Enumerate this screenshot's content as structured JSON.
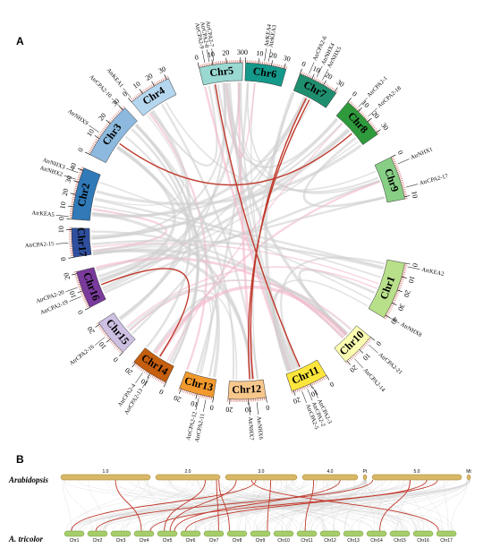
{
  "panels": {
    "a": "A",
    "b": "B"
  },
  "colors": {
    "synteny_gray": "#cfcfcf",
    "synteny_pink": "#f4b6c8",
    "highlight_red": "#c0392b",
    "bar_fill": "#d8b866",
    "bar_stroke": "#a07e2b",
    "bar_fill_green": "#a6cd6a",
    "bar_stroke_green": "#6e9a38"
  },
  "circos": {
    "chromosomes": [
      {
        "name": "Chr1",
        "color": "#b8e08a",
        "ticks": [
          "0",
          "10",
          "20",
          "30",
          "40"
        ]
      },
      {
        "name": "Chr10",
        "color": "#fafcb0",
        "ticks": [
          "0",
          "10",
          "20"
        ]
      },
      {
        "name": "Chr11",
        "color": "#fde63b",
        "ticks": [
          "0",
          "10",
          "20"
        ]
      },
      {
        "name": "Chr12",
        "color": "#f7c78c",
        "ticks": [
          "0",
          "10",
          "20"
        ]
      },
      {
        "name": "Chr13",
        "color": "#f29a2e",
        "ticks": [
          "0",
          "10",
          "20"
        ]
      },
      {
        "name": "Chr14",
        "color": "#c55e0e",
        "ticks": [
          "0",
          "10",
          "20"
        ]
      },
      {
        "name": "Chr15",
        "color": "#cdc0e2",
        "ticks": [
          "0",
          "10",
          "20"
        ]
      },
      {
        "name": "Chr16",
        "color": "#7a3a9c",
        "ticks": [
          "0",
          "10",
          "20"
        ]
      },
      {
        "name": "Chr17",
        "color": "#2f4f9e",
        "ticks": [
          "0",
          "10"
        ]
      },
      {
        "name": "Chr2",
        "color": "#3179b7",
        "ticks": [
          "0",
          "10",
          "20",
          "30",
          "40"
        ]
      },
      {
        "name": "Chr3",
        "color": "#8cb9dd",
        "ticks": [
          "0",
          "10",
          "20",
          "30"
        ]
      },
      {
        "name": "Chr4",
        "color": "#b4d6ee",
        "ticks": [
          "0",
          "10",
          "20",
          "30"
        ]
      },
      {
        "name": "Chr5",
        "color": "#9ad8d2",
        "ticks": [
          "0",
          "10",
          "20",
          "30"
        ]
      },
      {
        "name": "Chr6",
        "color": "#14998a",
        "ticks": [
          "0",
          "10",
          "20",
          "30"
        ]
      },
      {
        "name": "Chr7",
        "color": "#1f8e6e",
        "ticks": [
          "0",
          "10",
          "20",
          "30"
        ]
      },
      {
        "name": "Chr8",
        "color": "#2f9a3c",
        "ticks": [
          "0",
          "10",
          "20",
          "30"
        ]
      },
      {
        "name": "Chr9",
        "color": "#88cf86",
        "ticks": [
          "0",
          "10"
        ]
      }
    ],
    "genes": [
      {
        "label": "AtrKEA1",
        "chr": "Chr4",
        "at": 0.05
      },
      {
        "label": "AtrCPA2-9",
        "chr": "Chr5",
        "at": 0.15
      },
      {
        "label": "AtrCPA2-8",
        "chr": "Chr5",
        "at": 0.25
      },
      {
        "label": "AtrCPA2-7",
        "chr": "Chr5",
        "at": 0.35
      },
      {
        "label": "AtrKEA4",
        "chr": "Chr6",
        "at": 0.45
      },
      {
        "label": "AtrKEA3",
        "chr": "Chr6",
        "at": 0.55
      },
      {
        "label": "AtrCPA2-6",
        "chr": "Chr7",
        "at": 0.2
      },
      {
        "label": "AtrNHX4",
        "chr": "Chr7",
        "at": 0.4
      },
      {
        "label": "AtrNHX5",
        "chr": "Chr7",
        "at": 0.55
      },
      {
        "label": "AtrCPA2-1",
        "chr": "Chr8",
        "at": 0.25
      },
      {
        "label": "AtrCPA2-18",
        "chr": "Chr8",
        "at": 0.55
      },
      {
        "label": "AtrNHX1",
        "chr": "Chr9",
        "at": 0.2
      },
      {
        "label": "AtrCPA2-17",
        "chr": "Chr9",
        "at": 0.75
      },
      {
        "label": "AtrKEA2",
        "chr": "Chr1",
        "at": 0.05
      },
      {
        "label": "AtrNHX8",
        "chr": "Chr1",
        "at": 0.95
      },
      {
        "label": "AtrCPA2-21",
        "chr": "Chr10",
        "at": 0.2
      },
      {
        "label": "AtrCPA2-14",
        "chr": "Chr10",
        "at": 0.75
      },
      {
        "label": "AtrCPA2-3",
        "chr": "Chr11",
        "at": 0.45
      },
      {
        "label": "AtrCPA2-2",
        "chr": "Chr11",
        "at": 0.6
      },
      {
        "label": "AtrCPA2-5",
        "chr": "Chr11",
        "at": 0.75
      },
      {
        "label": "AtrNHX6",
        "chr": "Chr12",
        "at": 0.25
      },
      {
        "label": "AtrNHX7",
        "chr": "Chr12",
        "at": 0.45
      },
      {
        "label": "AtrCPA2-11",
        "chr": "Chr13",
        "at": 0.2
      },
      {
        "label": "AtrCPA2-12",
        "chr": "Chr13",
        "at": 0.4
      },
      {
        "label": "AtrCPA2-13",
        "chr": "Chr14",
        "at": 0.45
      },
      {
        "label": "AtrCPA2-4",
        "chr": "Chr14",
        "at": 0.65
      },
      {
        "label": "AtrCPA2-16",
        "chr": "Chr15",
        "at": 0.6
      },
      {
        "label": "AtrCPA2-19",
        "chr": "Chr16",
        "at": 0.35
      },
      {
        "label": "AtrCPA2-20",
        "chr": "Chr16",
        "at": 0.6
      },
      {
        "label": "AtrCPA2-15",
        "chr": "Chr17",
        "at": 0.5
      },
      {
        "label": "AtrKEA5",
        "chr": "Chr2",
        "at": 0.05
      },
      {
        "label": "AtrNHX2",
        "chr": "Chr2",
        "at": 0.75
      },
      {
        "label": "AtrNHX3",
        "chr": "Chr2",
        "at": 0.88
      },
      {
        "label": "AtrNHX9",
        "chr": "Chr3",
        "at": 0.4
      },
      {
        "label": "AtrCPA2-10",
        "chr": "Chr3",
        "at": 0.95
      }
    ],
    "red_links": [
      {
        "a": "Chr3",
        "at_a": 0.45,
        "b": "Chr8",
        "at_b": 0.6
      },
      {
        "a": "Chr5",
        "at_a": 0.3,
        "b": "Chr11",
        "at_b": 0.55
      },
      {
        "a": "Chr7",
        "at_a": 0.4,
        "b": "Chr12",
        "at_b": 0.3
      },
      {
        "a": "Chr7",
        "at_a": 0.5,
        "b": "Chr12",
        "at_b": 0.4
      },
      {
        "a": "Chr14",
        "at_a": 0.5,
        "b": "Chr16",
        "at_b": 0.45
      }
    ]
  },
  "synteny_bars": {
    "top_species": "Arabidopsis",
    "bottom_species": "A. tricolor",
    "top_chrs": [
      "1.0",
      "2.0",
      "3.0",
      "4.0",
      "Pt",
      "5.0",
      "Mt"
    ],
    "bottom_chrs": [
      "Chr1",
      "Chr2",
      "Chr3",
      "Chr4",
      "Chr5",
      "Chr6",
      "Chr7",
      "Chr8",
      "Chr9",
      "Chr10",
      "Chr11",
      "Chr12",
      "Chr13",
      "Chr14",
      "Chr15",
      "Chr16",
      "Chr17"
    ]
  }
}
